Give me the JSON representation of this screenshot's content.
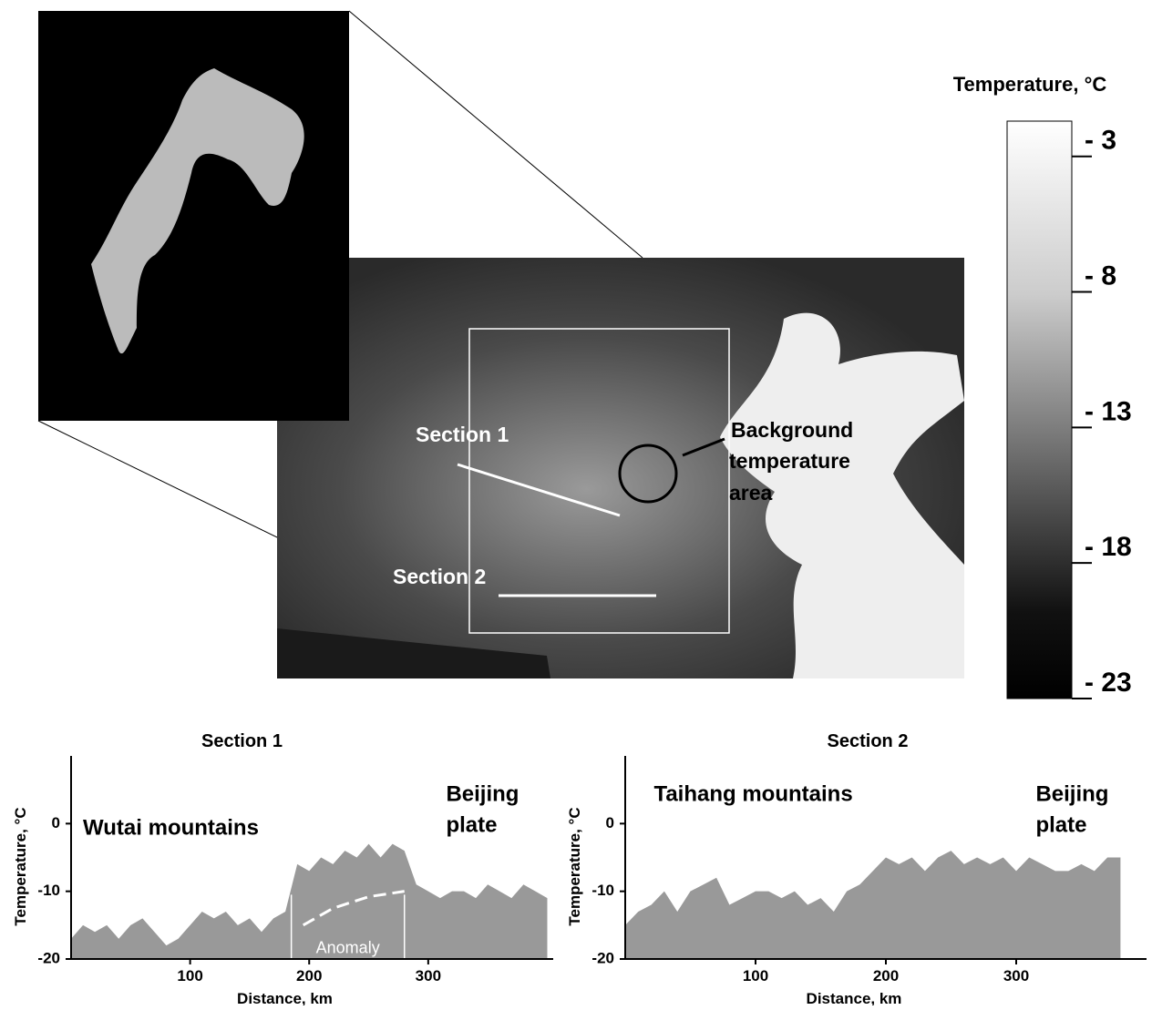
{
  "map": {
    "labels": {
      "section1": "Section 1",
      "section2": "Section 2",
      "background": [
        "Background",
        "temperature",
        "area"
      ]
    }
  },
  "colorbar": {
    "title": "Temperature, °C",
    "clim": [
      -23,
      -1.7
    ],
    "ticks": [
      {
        "value": -3,
        "label": "- 3"
      },
      {
        "value": -8,
        "label": "- 8"
      },
      {
        "value": -13,
        "label": "- 13"
      },
      {
        "value": -18,
        "label": "- 18"
      },
      {
        "value": -23,
        "label": "- 23"
      }
    ]
  },
  "chart_data": [
    {
      "type": "area",
      "title": "Section 1",
      "xlabel": "Distance, km",
      "ylabel": "Temperature, °C",
      "color": "#999999",
      "xlim": [
        0,
        405
      ],
      "ylim": [
        -20,
        10
      ],
      "xticks": [
        100,
        200,
        300
      ],
      "yticks": [
        -20,
        -10,
        0
      ],
      "x": [
        0,
        10,
        20,
        30,
        40,
        50,
        60,
        70,
        80,
        90,
        100,
        110,
        120,
        130,
        140,
        150,
        160,
        170,
        180,
        190,
        200,
        210,
        220,
        230,
        240,
        250,
        260,
        270,
        280,
        290,
        300,
        310,
        320,
        330,
        340,
        350,
        360,
        370,
        380,
        390,
        400
      ],
      "values": [
        -17,
        -15,
        -16,
        -15,
        -17,
        -15,
        -14,
        -16,
        -18,
        -17,
        -15,
        -13,
        -14,
        -13,
        -15,
        -14,
        -16,
        -14,
        -13,
        -6,
        -7,
        -5,
        -6,
        -4,
        -5,
        -3,
        -5,
        -3,
        -4,
        -9,
        -10,
        -11,
        -10,
        -10,
        -11,
        -9,
        -10,
        -11,
        -9,
        -10,
        -11
      ],
      "annotations": [
        {
          "text": [
            "Wutai mountains"
          ],
          "x": 10,
          "y": -3
        },
        {
          "text": [
            "Beijing",
            "plate"
          ],
          "x": 315,
          "y": 2
        }
      ],
      "anomaly": {
        "label": "Anomaly",
        "bounds": [
          185,
          280
        ],
        "x": [
          195,
          220,
          250,
          280
        ],
        "values": [
          -15,
          -12.5,
          -10.8,
          -10
        ]
      }
    },
    {
      "type": "area",
      "title": "Section 2",
      "xlabel": "Distance, km",
      "ylabel": "Temperature, °C",
      "color": "#999999",
      "xlim": [
        0,
        400
      ],
      "ylim": [
        -20,
        10
      ],
      "xticks": [
        100,
        200,
        300
      ],
      "yticks": [
        -20,
        -10,
        0
      ],
      "x": [
        0,
        10,
        20,
        30,
        40,
        50,
        60,
        70,
        80,
        90,
        100,
        110,
        120,
        130,
        140,
        150,
        160,
        170,
        180,
        190,
        200,
        210,
        220,
        230,
        240,
        250,
        260,
        270,
        280,
        290,
        300,
        310,
        320,
        330,
        340,
        350,
        360,
        370,
        380
      ],
      "values": [
        -15,
        -13,
        -12,
        -10,
        -13,
        -10,
        -9,
        -8,
        -12,
        -11,
        -10,
        -10,
        -11,
        -10,
        -12,
        -11,
        -13,
        -10,
        -9,
        -7,
        -5,
        -6,
        -5,
        -7,
        -5,
        -4,
        -6,
        -5,
        -6,
        -5,
        -7,
        -5,
        -6,
        -7,
        -7,
        -6,
        -7,
        -5,
        -5
      ],
      "annotations": [
        {
          "text": [
            "Taihang mountains"
          ],
          "x": 22,
          "y": 2
        },
        {
          "text": [
            "Beijing",
            "plate"
          ],
          "x": 315,
          "y": 2
        }
      ]
    }
  ]
}
